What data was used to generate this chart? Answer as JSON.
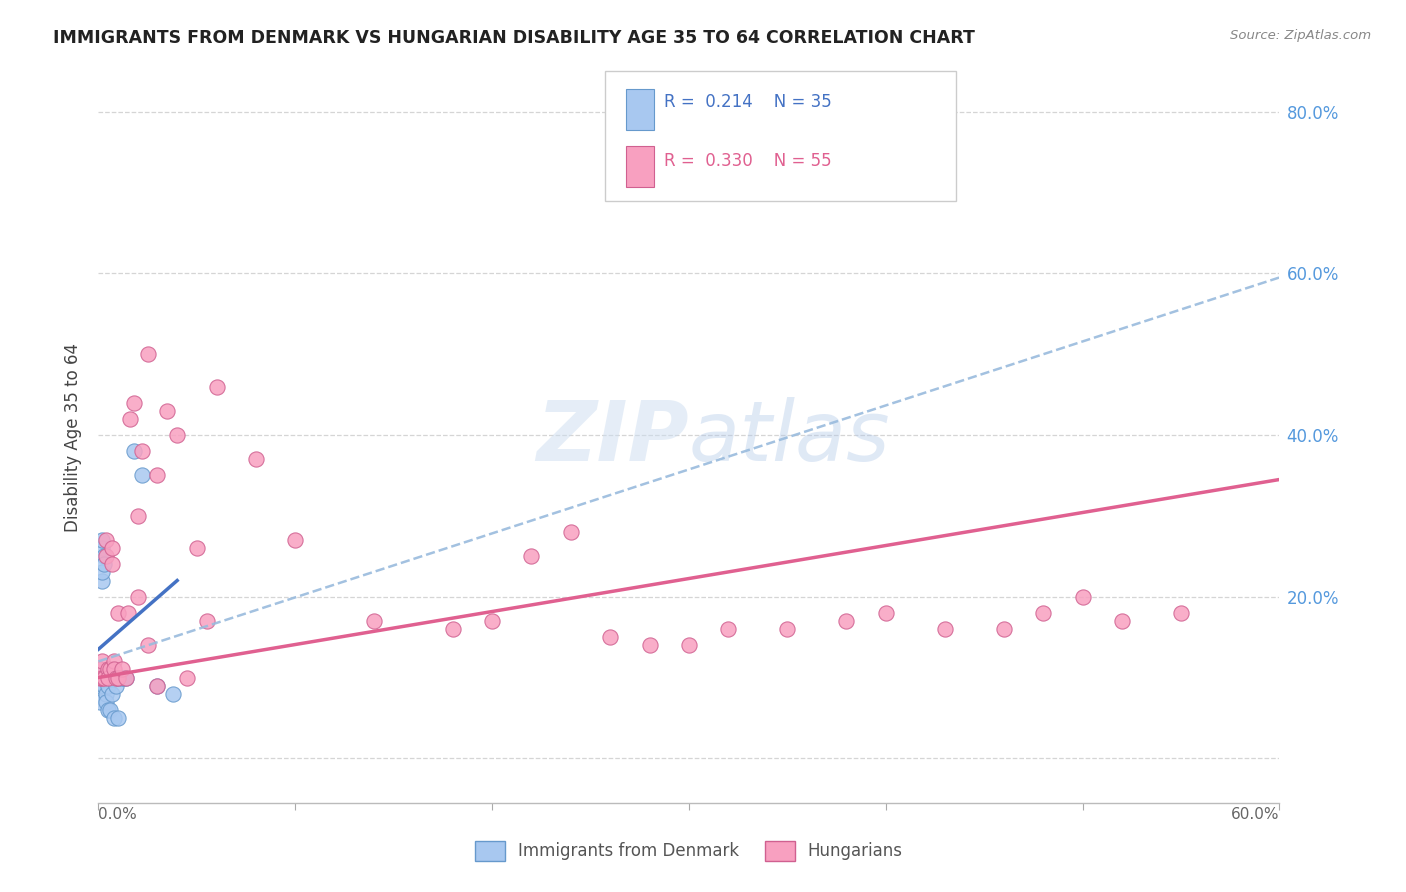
{
  "title": "IMMIGRANTS FROM DENMARK VS HUNGARIAN DISABILITY AGE 35 TO 64 CORRELATION CHART",
  "source": "Source: ZipAtlas.com",
  "ylabel": "Disability Age 35 to 64",
  "R1": 0.214,
  "N1": 35,
  "R2": 0.33,
  "N2": 55,
  "color_blue_fill": "#a8c8f0",
  "color_blue_edge": "#6699cc",
  "color_pink_fill": "#f8a0c0",
  "color_pink_edge": "#d06090",
  "color_trend_blue_solid": "#4472C4",
  "color_trend_blue_dash": "#99bbdd",
  "color_trend_pink": "#e06090",
  "color_ytick": "#5599dd",
  "xlim": [
    0.0,
    0.6
  ],
  "ylim": [
    -0.055,
    0.85
  ],
  "ytick_positions": [
    0.0,
    0.2,
    0.4,
    0.6,
    0.8
  ],
  "ytick_labels": [
    "",
    "20.0%",
    "40.0%",
    "60.0%",
    "80.0%"
  ],
  "xtick_positions": [
    0.0,
    0.1,
    0.2,
    0.3,
    0.4,
    0.5,
    0.6
  ],
  "legend1_label": "Immigrants from Denmark",
  "legend2_label": "Hungarians",
  "blue_solid_line": [
    [
      0.0,
      0.135
    ],
    [
      0.04,
      0.22
    ]
  ],
  "blue_dash_line": [
    [
      0.0,
      0.12
    ],
    [
      0.6,
      0.595
    ]
  ],
  "pink_solid_line": [
    [
      0.0,
      0.1
    ],
    [
      0.6,
      0.345
    ]
  ],
  "blue_x": [
    0.001,
    0.001,
    0.001,
    0.001,
    0.002,
    0.002,
    0.002,
    0.002,
    0.002,
    0.003,
    0.003,
    0.003,
    0.003,
    0.004,
    0.004,
    0.004,
    0.005,
    0.005,
    0.005,
    0.006,
    0.006,
    0.007,
    0.007,
    0.008,
    0.008,
    0.009,
    0.01,
    0.01,
    0.012,
    0.013,
    0.014,
    0.018,
    0.022,
    0.03,
    0.038
  ],
  "blue_y": [
    0.1,
    0.11,
    0.09,
    0.07,
    0.26,
    0.27,
    0.22,
    0.23,
    0.1,
    0.25,
    0.24,
    0.1,
    0.09,
    0.1,
    0.08,
    0.07,
    0.1,
    0.09,
    0.06,
    0.1,
    0.06,
    0.1,
    0.08,
    0.1,
    0.05,
    0.09,
    0.1,
    0.05,
    0.1,
    0.1,
    0.1,
    0.38,
    0.35,
    0.09,
    0.08
  ],
  "pink_x": [
    0.001,
    0.001,
    0.002,
    0.002,
    0.003,
    0.004,
    0.004,
    0.005,
    0.005,
    0.006,
    0.007,
    0.007,
    0.008,
    0.008,
    0.009,
    0.01,
    0.012,
    0.014,
    0.016,
    0.018,
    0.02,
    0.022,
    0.025,
    0.03,
    0.035,
    0.04,
    0.045,
    0.05,
    0.055,
    0.06,
    0.08,
    0.1,
    0.14,
    0.18,
    0.2,
    0.22,
    0.24,
    0.26,
    0.28,
    0.3,
    0.32,
    0.35,
    0.38,
    0.4,
    0.43,
    0.46,
    0.48,
    0.5,
    0.52,
    0.55,
    0.01,
    0.015,
    0.02,
    0.025,
    0.03
  ],
  "pink_y": [
    0.1,
    0.11,
    0.12,
    0.1,
    0.1,
    0.25,
    0.27,
    0.11,
    0.1,
    0.11,
    0.24,
    0.26,
    0.12,
    0.11,
    0.1,
    0.1,
    0.11,
    0.1,
    0.42,
    0.44,
    0.3,
    0.38,
    0.5,
    0.35,
    0.43,
    0.4,
    0.1,
    0.26,
    0.17,
    0.46,
    0.37,
    0.27,
    0.17,
    0.16,
    0.17,
    0.25,
    0.28,
    0.15,
    0.14,
    0.14,
    0.16,
    0.16,
    0.17,
    0.18,
    0.16,
    0.16,
    0.18,
    0.2,
    0.17,
    0.18,
    0.18,
    0.18,
    0.2,
    0.14,
    0.09
  ]
}
